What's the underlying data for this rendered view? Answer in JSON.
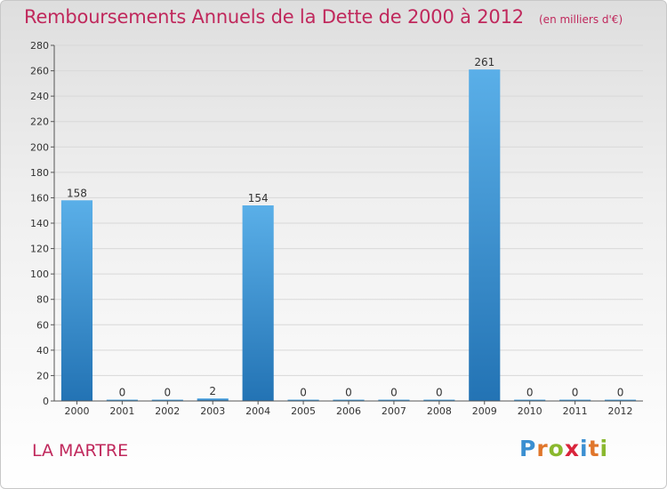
{
  "title": "Remboursements Annuels de la Dette de 2000 à 2012",
  "unit": "(en milliers d'€)",
  "location": "LA MARTRE",
  "logo": {
    "text": "Proxiti",
    "letter_colors": [
      "#3b8fd1",
      "#e0762b",
      "#8ab82e",
      "#d9243b",
      "#3b8fd1",
      "#e0762b",
      "#8ab82e"
    ]
  },
  "colors": {
    "title": "#c0285c",
    "bar_top": "#5aafe8",
    "bar_bottom": "#2373b4",
    "axis": "#555555",
    "grid": "#d8d8d8"
  },
  "chart_data": {
    "type": "bar",
    "categories": [
      "2000",
      "2001",
      "2002",
      "2003",
      "2004",
      "2005",
      "2006",
      "2007",
      "2008",
      "2009",
      "2010",
      "2011",
      "2012"
    ],
    "values": [
      158,
      0,
      0,
      2,
      154,
      0,
      0,
      0,
      0,
      261,
      0,
      0,
      0
    ],
    "ylim": [
      0,
      280
    ],
    "yticks": [
      0,
      20,
      40,
      60,
      80,
      100,
      120,
      140,
      160,
      180,
      200,
      220,
      240,
      260,
      280
    ],
    "grid": true,
    "data_labels": true
  }
}
